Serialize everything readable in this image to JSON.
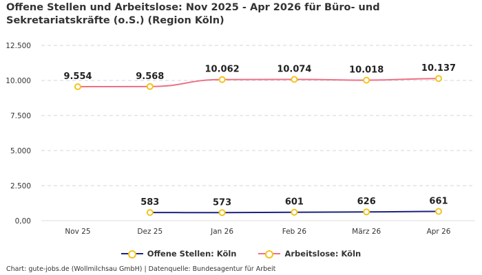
{
  "title": "Offene Stellen und Arbeitslose: Nov 2025 - Apr 2026 für Büro- und Sekretariatskräfte (o.S.) (Region Köln)",
  "credits": "Chart: gute-jobs.de (Wollmilchsau GmbH) | Datenquelle: Bundesagentur für Arbeit",
  "colors": {
    "offene_stellen": "#1a237e",
    "arbeitslose": "#f06f83",
    "marker_border": "#f2c41a",
    "grid": "#cfd4dc",
    "baseline": "#dddddd"
  },
  "chart_data": {
    "type": "line",
    "categories": [
      "Nov 25",
      "Dez 25",
      "Jan 26",
      "Feb 26",
      "März 26",
      "Apr 26"
    ],
    "ylim": [
      0,
      12500
    ],
    "yticks": [
      0,
      2500,
      5000,
      7500,
      10000,
      12500
    ],
    "ytick_labels": [
      "0,00",
      "2.500",
      "5.000",
      "7.500",
      "10.000",
      "12.500"
    ],
    "grid": true,
    "legend_position": "bottom-center",
    "series": [
      {
        "name": "Offene Stellen: Köln",
        "values": [
          null,
          583,
          573,
          601,
          626,
          661
        ],
        "labels": [
          "",
          "583",
          "573",
          "601",
          "626",
          "661"
        ]
      },
      {
        "name": "Arbeitslose: Köln",
        "values": [
          9554,
          9568,
          10062,
          10074,
          10018,
          10137
        ],
        "labels": [
          "9.554",
          "9.568",
          "10.062",
          "10.074",
          "10.018",
          "10.137"
        ]
      }
    ]
  }
}
